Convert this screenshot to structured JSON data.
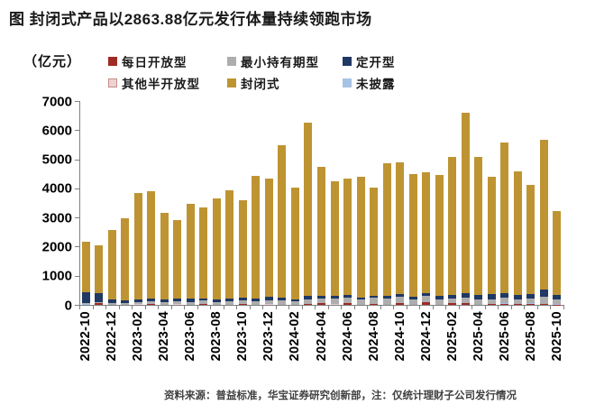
{
  "figure": {
    "title": "图 封闭式产品以2863.88亿元发行体量持续领跑市场",
    "y_axis_unit": "（亿元）",
    "source_note": "资料来源：普益标准，华宝证券研究创新部，注：仅统计理财子公司发行情况"
  },
  "colors": {
    "daily_open": "#9E2B25",
    "min_holding": "#ADADAD",
    "fixed_open": "#1F3864",
    "other_semi_open": "#ECD3D2",
    "other_semi_open_border": "#C48D8B",
    "closed": "#BE9433",
    "undisclosed": "#A6C2E5",
    "axis": "#7F7F7F"
  },
  "legend": {
    "rows": [
      [
        {
          "label": "每日开放型",
          "color": "daily_open"
        },
        {
          "label": "最小持有期型",
          "color": "min_holding"
        },
        {
          "label": "定开型",
          "color": "fixed_open"
        }
      ],
      [
        {
          "label": "其他半开放型",
          "color": "other_semi_open"
        },
        {
          "label": "封闭式",
          "color": "closed"
        },
        {
          "label": "未披露",
          "color": "undisclosed"
        }
      ]
    ]
  },
  "chart_data": {
    "type": "bar",
    "stacked": true,
    "title": "封闭式产品以2863.88亿元发行体量持续领跑市场",
    "ylabel": "（亿元）",
    "ylim": [
      0,
      7000
    ],
    "yticks": [
      0,
      1000,
      2000,
      3000,
      4000,
      5000,
      6000,
      7000
    ],
    "grid": false,
    "legend_position": "top",
    "x_label_every": 2,
    "categories": [
      "2022-10",
      "2022-11",
      "2022-12",
      "2023-01",
      "2023-02",
      "2023-03",
      "2023-04",
      "2023-05",
      "2023-06",
      "2023-07",
      "2023-08",
      "2023-09",
      "2023-10",
      "2023-11",
      "2023-12",
      "2024-01",
      "2024-02",
      "2024-03",
      "2024-04",
      "2024-05",
      "2024-06",
      "2024-07",
      "2024-08",
      "2024-09",
      "2024-10",
      "2024-11",
      "2024-12",
      "2025-01",
      "2025-02",
      "2025-03",
      "2025-04",
      "2025-05",
      "2025-06",
      "2025-07",
      "2025-08",
      "2025-09",
      "2025-10"
    ],
    "series": [
      {
        "name": "每日开放型",
        "color": "daily_open",
        "values": [
          0,
          70,
          0,
          0,
          0,
          30,
          0,
          0,
          0,
          30,
          0,
          0,
          30,
          0,
          0,
          0,
          0,
          40,
          50,
          0,
          60,
          0,
          40,
          0,
          60,
          0,
          80,
          0,
          50,
          60,
          0,
          30,
          40,
          30,
          30,
          40,
          15
        ]
      },
      {
        "name": "其他半开放型",
        "color": "other_semi_open",
        "values": [
          0,
          0,
          0,
          0,
          20,
          0,
          0,
          20,
          0,
          0,
          0,
          0,
          0,
          0,
          20,
          0,
          0,
          0,
          0,
          30,
          0,
          0,
          0,
          0,
          0,
          0,
          0,
          0,
          0,
          0,
          0,
          0,
          0,
          0,
          0,
          0,
          0
        ]
      },
      {
        "name": "未披露",
        "color": "undisclosed",
        "values": [
          25,
          0,
          0,
          0,
          0,
          0,
          0,
          0,
          0,
          0,
          0,
          0,
          0,
          0,
          0,
          0,
          0,
          0,
          0,
          0,
          0,
          0,
          0,
          0,
          0,
          0,
          0,
          0,
          0,
          0,
          0,
          0,
          20,
          0,
          20,
          0,
          25
        ]
      },
      {
        "name": "最小持有期型",
        "color": "min_holding",
        "values": [
          30,
          20,
          60,
          60,
          70,
          80,
          90,
          100,
          100,
          110,
          100,
          110,
          120,
          130,
          140,
          150,
          120,
          160,
          180,
          190,
          200,
          180,
          200,
          220,
          230,
          200,
          230,
          180,
          160,
          200,
          180,
          170,
          180,
          160,
          170,
          240,
          140
        ]
      },
      {
        "name": "定开型",
        "color": "fixed_open",
        "values": [
          380,
          300,
          120,
          90,
          90,
          110,
          100,
          110,
          120,
          80,
          90,
          100,
          90,
          100,
          110,
          90,
          80,
          100,
          90,
          80,
          90,
          80,
          70,
          90,
          80,
          90,
          80,
          130,
          140,
          130,
          150,
          160,
          150,
          140,
          150,
          260,
          170
        ]
      },
      {
        "name": "封闭式",
        "color": "closed",
        "values": [
          1745,
          1650,
          2400,
          2810,
          3660,
          3690,
          2980,
          2680,
          3260,
          3120,
          3460,
          3720,
          3360,
          4210,
          4070,
          5230,
          3830,
          5970,
          4410,
          3940,
          4000,
          4130,
          3730,
          4560,
          4510,
          4190,
          4160,
          4140,
          4740,
          6220,
          4740,
          4040,
          5170,
          4240,
          3740,
          5120,
          2863.88
        ]
      }
    ]
  }
}
